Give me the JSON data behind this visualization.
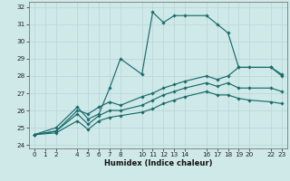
{
  "xlabel": "Humidex (Indice chaleur)",
  "ylabel": "",
  "bg_color": "#cfe9e9",
  "line_color": "#1a6b6b",
  "grid_color": "#bbd8d8",
  "xlim": [
    -0.5,
    23.5
  ],
  "ylim": [
    23.8,
    32.3
  ],
  "xticks": [
    0,
    1,
    2,
    4,
    5,
    6,
    7,
    8,
    10,
    11,
    12,
    13,
    14,
    16,
    17,
    18,
    19,
    20,
    22,
    23
  ],
  "yticks": [
    24,
    25,
    26,
    27,
    28,
    29,
    30,
    31,
    32
  ],
  "lines": [
    {
      "x": [
        0,
        2,
        4,
        5,
        6,
        7,
        8,
        10,
        11,
        12,
        13,
        14,
        16,
        17,
        18,
        19,
        22,
        23
      ],
      "y": [
        24.6,
        25.0,
        26.2,
        25.5,
        25.8,
        27.3,
        29.0,
        28.1,
        31.7,
        31.1,
        31.5,
        31.5,
        31.5,
        31.0,
        30.5,
        28.5,
        28.5,
        28.1
      ]
    },
    {
      "x": [
        0,
        2,
        4,
        5,
        6,
        7,
        8,
        10,
        11,
        12,
        13,
        14,
        16,
        17,
        18,
        19,
        20,
        22,
        23
      ],
      "y": [
        24.6,
        24.8,
        26.0,
        25.8,
        26.2,
        26.5,
        26.3,
        26.8,
        27.0,
        27.3,
        27.5,
        27.7,
        28.0,
        27.8,
        28.0,
        28.5,
        28.5,
        28.5,
        28.0
      ]
    },
    {
      "x": [
        0,
        2,
        4,
        5,
        6,
        7,
        8,
        10,
        11,
        12,
        13,
        14,
        16,
        17,
        18,
        19,
        20,
        22,
        23
      ],
      "y": [
        24.6,
        24.8,
        25.8,
        25.2,
        25.7,
        26.0,
        26.0,
        26.3,
        26.6,
        26.9,
        27.1,
        27.3,
        27.6,
        27.4,
        27.6,
        27.3,
        27.3,
        27.3,
        27.1
      ]
    },
    {
      "x": [
        0,
        2,
        4,
        5,
        6,
        7,
        8,
        10,
        11,
        12,
        13,
        14,
        16,
        17,
        18,
        19,
        20,
        22,
        23
      ],
      "y": [
        24.6,
        24.7,
        25.4,
        24.9,
        25.4,
        25.6,
        25.7,
        25.9,
        26.1,
        26.4,
        26.6,
        26.8,
        27.1,
        26.9,
        26.9,
        26.7,
        26.6,
        26.5,
        26.4
      ]
    }
  ]
}
